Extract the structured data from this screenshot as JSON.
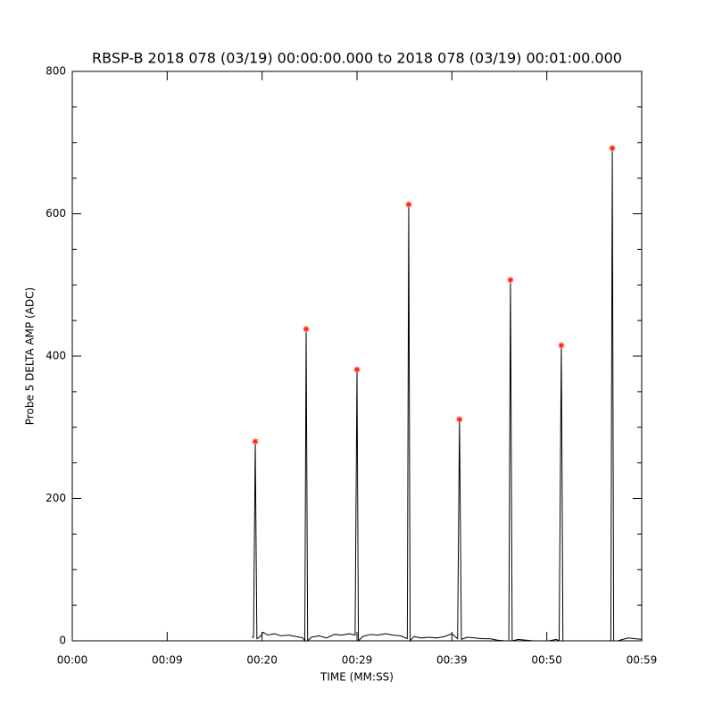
{
  "chart_data": {
    "type": "line",
    "title": "RBSP-B 2018 078 (03/19) 00:00:00.000 to 2018 078 (03/19) 00:01:00.000",
    "x_label": "TIME (MM:SS)",
    "y_label": "Probe 5 DELTA AMP (ADC)",
    "xlim": [
      0,
      60
    ],
    "xticks": [
      {
        "value": 0,
        "label": "00:00"
      },
      {
        "value": 10,
        "label": "00:09"
      },
      {
        "value": 20,
        "label": "00:20"
      },
      {
        "value": 30,
        "label": "00:29"
      },
      {
        "value": 40,
        "label": "00:39"
      },
      {
        "value": 50,
        "label": "00:50"
      },
      {
        "value": 60,
        "label": "00:59"
      }
    ],
    "ylim": [
      0,
      800
    ],
    "yticks": [
      0,
      200,
      400,
      600,
      800
    ],
    "yminor_ticks": [
      50,
      100,
      150,
      250,
      300,
      350,
      450,
      500,
      550,
      650,
      700,
      750
    ],
    "trace": {
      "color": "#000000",
      "x": [
        18.9,
        19.1,
        19.28,
        19.45,
        19.8,
        20.1,
        20.6,
        21.3,
        22,
        22.8,
        23.6,
        24.3,
        24.5,
        24.64,
        24.8,
        25.2,
        26,
        26.8,
        27.6,
        28.4,
        29.2,
        29.8,
        30.0,
        30.15,
        30.6,
        31.4,
        32.2,
        33,
        33.8,
        34.6,
        35.3,
        35.45,
        35.6,
        36,
        36.8,
        37.6,
        38.4,
        39.2,
        40,
        40.6,
        40.8,
        41,
        41.6,
        42.4,
        43.2,
        44,
        44.8,
        45.6,
        46.0,
        46.17,
        46.35,
        47,
        47.8,
        48.6,
        49.4,
        50.2,
        51,
        51.3,
        51.53,
        51.7,
        52.4,
        53.2,
        54,
        54.8,
        55.6,
        56.5,
        56.75,
        56.9,
        57.05,
        57.5,
        58,
        58.6,
        59.3,
        60
      ],
      "values": [
        5,
        5,
        280,
        3,
        6,
        12,
        8,
        10,
        7,
        8,
        6,
        4,
        0,
        438,
        0,
        5,
        7,
        4,
        9,
        8,
        10,
        8,
        381,
        0,
        6,
        9,
        8,
        10,
        8,
        7,
        3,
        613,
        0,
        6,
        4,
        5,
        4,
        6,
        10,
        3,
        311,
        2,
        5,
        4,
        3,
        3,
        1,
        0,
        0,
        507,
        0,
        2,
        1,
        0,
        0,
        0,
        2,
        0,
        415,
        0,
        0,
        0,
        0,
        0,
        0,
        0,
        0,
        692,
        0,
        0,
        2,
        4,
        3,
        2
      ]
    },
    "peaks": {
      "color": "#ff2000",
      "x": [
        19.28,
        24.64,
        30.0,
        35.45,
        40.8,
        46.17,
        51.53,
        56.9
      ],
      "values": [
        280,
        438,
        381,
        613,
        311,
        507,
        415,
        692
      ]
    }
  }
}
